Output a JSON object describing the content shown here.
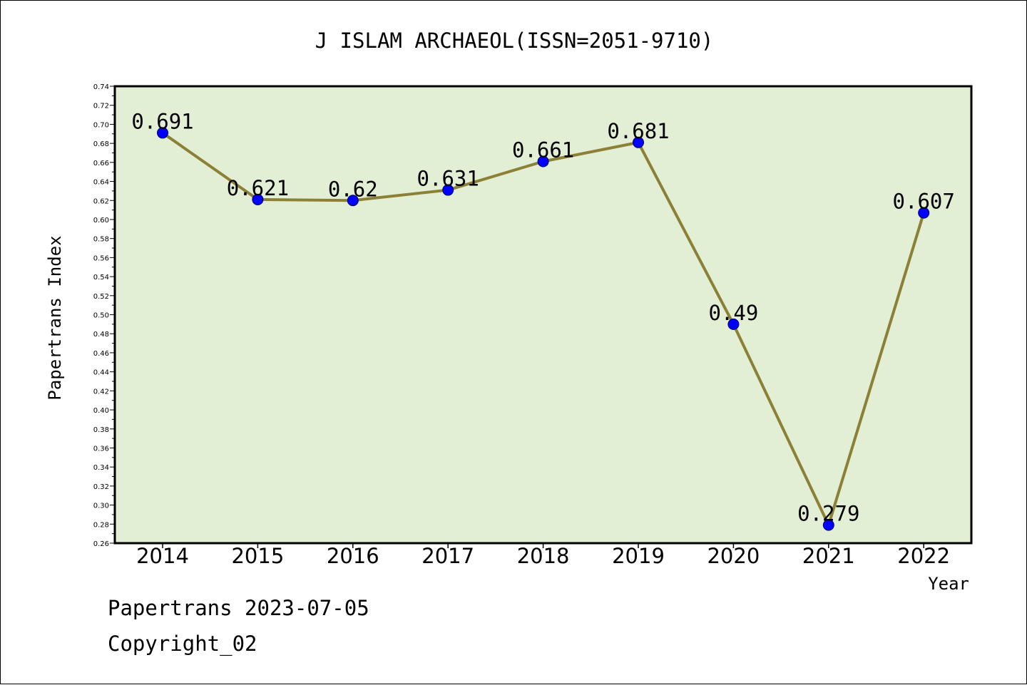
{
  "chart_data": {
    "type": "line",
    "title": "J ISLAM ARCHAEOL(ISSN=2051-9710)",
    "xlabel": "Year",
    "ylabel": "Papertrans Index",
    "categories": [
      "2014",
      "2015",
      "2016",
      "2017",
      "2018",
      "2019",
      "2020",
      "2021",
      "2022"
    ],
    "series": [
      {
        "values": [
          0.691,
          0.621,
          0.62,
          0.631,
          0.661,
          0.681,
          0.49,
          0.279,
          0.607
        ],
        "labels": [
          "0.691",
          "0.621",
          "0.62",
          "0.631",
          "0.661",
          "0.681",
          "0.49",
          "0.279",
          "0.607"
        ]
      }
    ],
    "ylim": [
      0.26,
      0.74
    ],
    "ytick_step": 0.02,
    "grid": false,
    "colors": {
      "plot_background": "#e2efd5",
      "line": "#8b8035",
      "marker": "#0000ff"
    }
  },
  "footer": {
    "line1": "Papertrans 2023-07-05",
    "line2": "Copyright_02"
  }
}
